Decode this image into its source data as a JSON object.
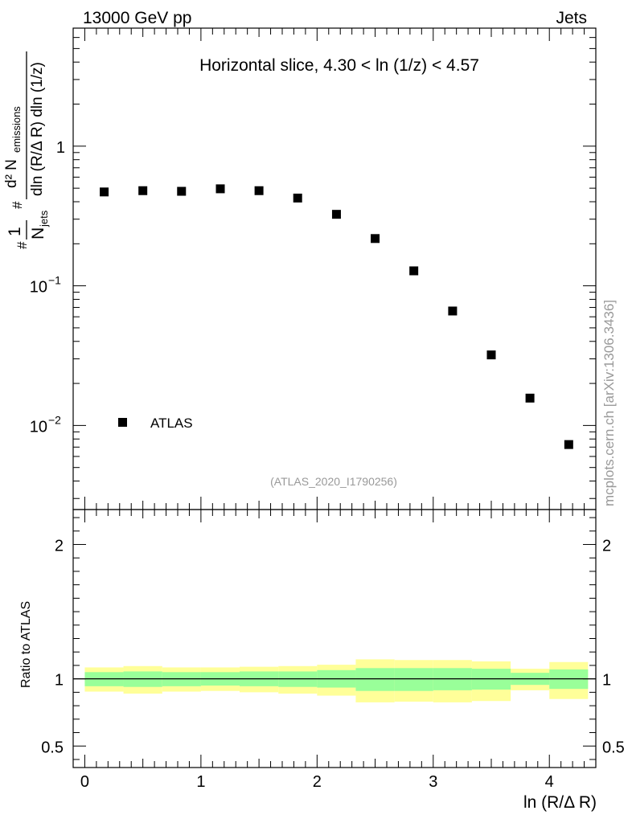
{
  "header": {
    "energy_label": "13000 GeV pp",
    "jets_label": "Jets",
    "watermark": "mcplots.cern.ch [arXiv:1306.3436]",
    "analysis_id": "(ATLAS_2020_I1790256)"
  },
  "chart_data": [
    {
      "type": "scatter",
      "title": "Horizontal slice, 4.30 < ln (1/z) < 4.57",
      "ylabel": "1/N_jets d²N_emissions / dln (R/Δ R) dln (1/z)",
      "yscale": "log",
      "xlim": [
        -0.1,
        4.4
      ],
      "ylim": [
        0.0025,
        7.0
      ],
      "y_ticks": [
        {
          "value": 0.01,
          "base": "10",
          "exp": "−2"
        },
        {
          "value": 0.1,
          "base": "10",
          "exp": "−1"
        },
        {
          "value": 1,
          "label": "1"
        }
      ],
      "legend": [
        {
          "name": "ATLAS",
          "marker": "square",
          "color": "#000000",
          "position": "bottom-left"
        }
      ],
      "series": [
        {
          "name": "ATLAS",
          "x": [
            0.167,
            0.5,
            0.833,
            1.167,
            1.5,
            1.833,
            2.167,
            2.5,
            2.833,
            3.167,
            3.5,
            3.833,
            4.167
          ],
          "values": [
            0.47,
            0.48,
            0.475,
            0.495,
            0.48,
            0.425,
            0.325,
            0.218,
            0.128,
            0.066,
            0.032,
            0.0157,
            0.0073
          ]
        }
      ]
    },
    {
      "type": "area",
      "ylabel": "Ratio to ATLAS",
      "xlabel": "ln (R/Δ R)",
      "xlim": [
        -0.1,
        4.4
      ],
      "ylim": [
        0.34,
        2.26
      ],
      "x_ticks": [
        {
          "value": 0,
          "label": "0"
        },
        {
          "value": 1,
          "label": "1"
        },
        {
          "value": 2,
          "label": "2"
        },
        {
          "value": 3,
          "label": "3"
        },
        {
          "value": 4,
          "label": "4"
        }
      ],
      "y_ticks": [
        {
          "value": 0.5,
          "label": "0.5"
        },
        {
          "value": 1,
          "label": "1"
        },
        {
          "value": 2,
          "label": "2"
        }
      ],
      "reference_line": 1.0,
      "bin_edges": [
        0,
        0.333,
        0.667,
        1.0,
        1.333,
        1.667,
        2.0,
        2.333,
        2.667,
        3.0,
        3.333,
        3.667,
        4.0,
        4.333
      ],
      "bands": [
        {
          "name": "total uncertainty",
          "color": "#ffff99",
          "lower": [
            0.905,
            0.89,
            0.905,
            0.91,
            0.9,
            0.89,
            0.875,
            0.825,
            0.83,
            0.825,
            0.835,
            0.915,
            0.85
          ],
          "upper": [
            1.085,
            1.095,
            1.085,
            1.085,
            1.09,
            1.095,
            1.105,
            1.145,
            1.14,
            1.14,
            1.13,
            1.075,
            1.125
          ]
        },
        {
          "name": "statistical uncertainty",
          "color": "#99ff99",
          "lower": [
            0.945,
            0.94,
            0.945,
            0.95,
            0.945,
            0.94,
            0.935,
            0.91,
            0.91,
            0.915,
            0.92,
            0.955,
            0.925
          ],
          "upper": [
            1.05,
            1.055,
            1.05,
            1.05,
            1.055,
            1.055,
            1.065,
            1.08,
            1.08,
            1.08,
            1.075,
            1.045,
            1.07
          ]
        }
      ]
    }
  ]
}
